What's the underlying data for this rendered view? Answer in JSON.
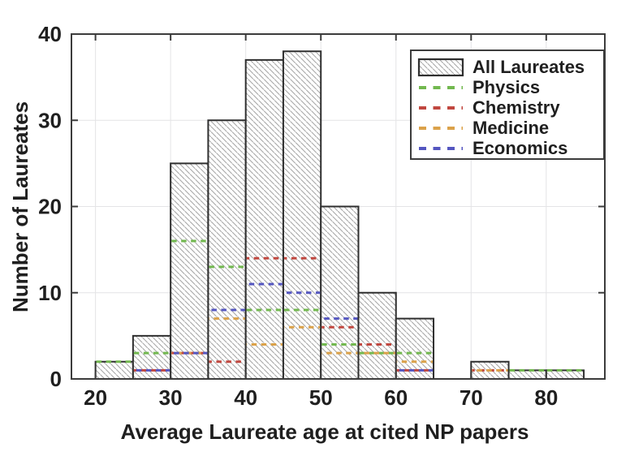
{
  "chart_data": {
    "type": "histogram",
    "title": "",
    "xlabel": "Average Laureate age at cited NP papers",
    "ylabel": "Number of Laureates",
    "bin_width": 5,
    "bin_starts": [
      20,
      25,
      30,
      35,
      40,
      45,
      50,
      55,
      60,
      65,
      70,
      75,
      80
    ],
    "xlim": [
      16.8,
      87.8
    ],
    "ylim": [
      0,
      40
    ],
    "xticks": [
      20,
      30,
      40,
      50,
      60,
      70,
      80
    ],
    "yticks": [
      0,
      10,
      20,
      30,
      40
    ],
    "grid": true,
    "legend_position": "top-right",
    "series": [
      {
        "name": "All Laureates",
        "render": "bar",
        "style": "hatched",
        "edge_color": "#2f2f2f",
        "hatch_color": "#a8a8a8",
        "values": [
          2,
          5,
          25,
          30,
          37,
          38,
          20,
          10,
          7,
          0,
          2,
          1,
          1
        ]
      },
      {
        "name": "Physics",
        "render": "dashed-step",
        "color": "#72b84f",
        "values": [
          2,
          3,
          16,
          13,
          8,
          8,
          4,
          3,
          3,
          0,
          0,
          1,
          1
        ]
      },
      {
        "name": "Chemistry",
        "render": "dashed-step",
        "color": "#c1473f",
        "values": [
          0,
          1,
          3,
          2,
          14,
          14,
          6,
          4,
          1,
          0,
          1,
          0,
          0
        ]
      },
      {
        "name": "Medicine",
        "render": "dashed-step",
        "color": "#dba24a",
        "values": [
          0,
          0,
          3,
          7,
          4,
          6,
          3,
          3,
          2,
          0,
          1,
          0,
          0
        ]
      },
      {
        "name": "Economics",
        "render": "dashed-step",
        "color": "#5456c0",
        "values": [
          0,
          1,
          3,
          8,
          11,
          10,
          7,
          0,
          1,
          0,
          0,
          0,
          0
        ]
      }
    ],
    "colors": {
      "axis": "#3c3c3c",
      "gridline": "#e4e4e6",
      "text": "#1f1f1f",
      "bar_fill": "#ffffff"
    }
  }
}
